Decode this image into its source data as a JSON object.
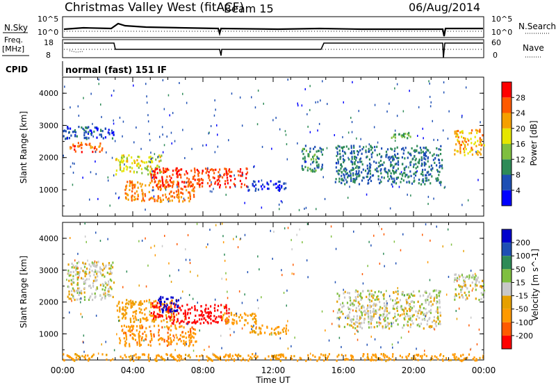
{
  "header": {
    "title": "Christmas Valley West (fitACF)",
    "beam": "Beam 15",
    "date": "06/Aug/2014"
  },
  "top_panels": {
    "nsky_label": "N.Sky",
    "nsky_ticks": [
      "10^5",
      "10^0"
    ],
    "nsearch_label": "N.Search",
    "nsearch_ticks": [
      "10^5",
      "10^0"
    ],
    "freq_label": [
      "Freq.",
      "[MHz]"
    ],
    "freq_ticks": [
      "18",
      "8"
    ],
    "nave_label": "Nave",
    "nave_ticks": [
      "60",
      "0"
    ],
    "cpid_label": "CPID",
    "cpid_text": "normal (fast) 151 IF"
  },
  "colors": {
    "power_scale": [
      "#0000ff",
      "#1e4fb4",
      "#2e8b57",
      "#7fbf3f",
      "#e6e600",
      "#f5a000",
      "#ff5a00",
      "#ff0000"
    ],
    "velocity_scale": [
      "#ff0000",
      "#ff5a00",
      "#ff9900",
      "#e6a000",
      "#c8c8c8",
      "#7fbf3f",
      "#2e8b57",
      "#1e4fb4",
      "#0000cc"
    ]
  },
  "chart_data": [
    {
      "type": "heatmap",
      "panel": "power",
      "ylabel": "Slant Range [km]",
      "yticks": [
        "1000",
        "2000",
        "3000",
        "4000"
      ],
      "ylim": [
        180,
        4500
      ],
      "xlim": [
        0,
        24
      ],
      "colorbar_label": "Power [dB]",
      "colorbar_ticks": [
        "4",
        "8",
        "12",
        "16",
        "20",
        "24",
        "28"
      ],
      "colorbar_range": [
        0,
        32
      ],
      "features": [
        {
          "t0": 0.0,
          "t1": 2.9,
          "r0": 2600,
          "r1": 3000,
          "dB": 6
        },
        {
          "t0": 0.4,
          "t1": 2.3,
          "r0": 2200,
          "r1": 2500,
          "dB": 26
        },
        {
          "t0": 3.0,
          "t1": 5.6,
          "r0": 1500,
          "r1": 2100,
          "dB": 18
        },
        {
          "t0": 3.5,
          "t1": 7.5,
          "r0": 650,
          "r1": 1300,
          "dB": 24
        },
        {
          "t0": 5.0,
          "t1": 10.5,
          "r0": 1100,
          "r1": 1700,
          "dB": 28
        },
        {
          "t0": 10.5,
          "t1": 12.7,
          "r0": 1000,
          "r1": 1300,
          "dB": 4
        },
        {
          "t0": 13.6,
          "t1": 14.8,
          "r0": 1600,
          "r1": 2400,
          "dB": 10
        },
        {
          "t0": 15.5,
          "t1": 21.6,
          "r0": 1200,
          "r1": 2400,
          "dB": 8
        },
        {
          "t0": 18.6,
          "t1": 19.8,
          "r0": 2600,
          "r1": 2800,
          "dB": 12
        },
        {
          "t0": 22.3,
          "t1": 24.0,
          "r0": 2100,
          "r1": 2900,
          "dB": 22
        }
      ]
    },
    {
      "type": "heatmap",
      "panel": "velocity",
      "ylabel": "Slant Range [km]",
      "yticks": [
        "1000",
        "2000",
        "3000",
        "4000"
      ],
      "ylim": [
        180,
        4500
      ],
      "xlim": [
        0,
        24
      ],
      "xlabel": "Time UT",
      "xticks": [
        "00:00",
        "04:00",
        "08:00",
        "12:00",
        "16:00",
        "20:00",
        "00:00"
      ],
      "colorbar_label": "Velocity [m s^-1]",
      "colorbar_ticks": [
        "200",
        "100",
        "50",
        "15",
        "-15",
        "-50",
        "-100",
        "-200"
      ],
      "features": [
        {
          "t0": 0.2,
          "t1": 2.9,
          "r0": 2100,
          "r1": 3300,
          "v": 0
        },
        {
          "t0": 3.0,
          "t1": 6.5,
          "r0": 1400,
          "r1": 2100,
          "v": -60
        },
        {
          "t0": 3.2,
          "t1": 7.6,
          "r0": 650,
          "r1": 1300,
          "v": -80
        },
        {
          "t0": 5.0,
          "t1": 6.2,
          "r0": 1500,
          "r1": 2000,
          "v": -250
        },
        {
          "t0": 6.0,
          "t1": 9.5,
          "r0": 1350,
          "r1": 1950,
          "v": -230
        },
        {
          "t0": 5.3,
          "t1": 6.6,
          "r0": 1700,
          "r1": 2200,
          "v": 250
        },
        {
          "t0": 9.0,
          "t1": 11.0,
          "r0": 1300,
          "r1": 1700,
          "v": -70
        },
        {
          "t0": 10.5,
          "t1": 12.8,
          "r0": 1000,
          "r1": 1300,
          "v": -60
        },
        {
          "t0": 15.6,
          "t1": 21.5,
          "r0": 1200,
          "r1": 2400,
          "v": 0
        },
        {
          "t0": 22.3,
          "t1": 24.0,
          "r0": 2100,
          "r1": 2900,
          "v": 0
        },
        {
          "t0": 0.0,
          "t1": 24.0,
          "r0": 180,
          "r1": 400,
          "v": -70
        }
      ]
    }
  ]
}
